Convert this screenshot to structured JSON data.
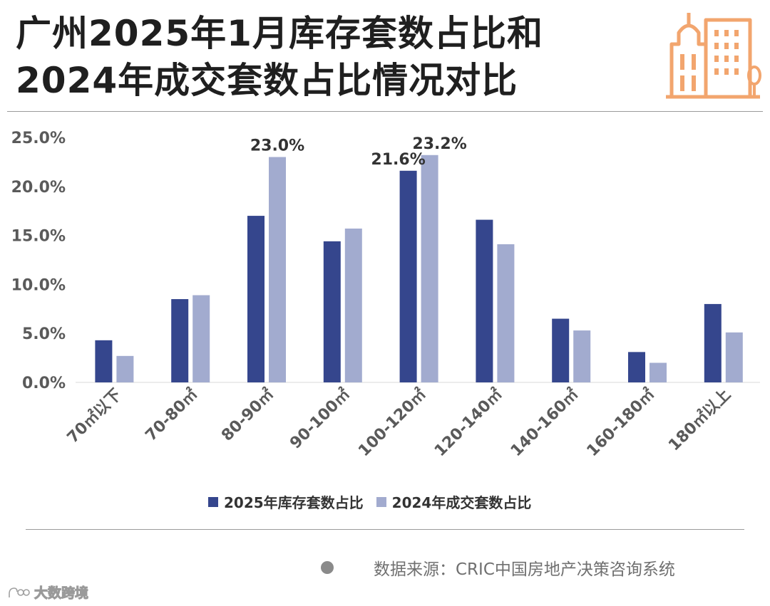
{
  "title": {
    "line1": "广州2025年1月库存套数占比和",
    "line2": "2024年成交套数占比情况对比"
  },
  "logo": {
    "icon": "city-buildings-icon",
    "color": "#f2a56e"
  },
  "colors": {
    "series_2025": "#35468d",
    "series_2024": "#a2abcf",
    "axis_text": "#5a5a5a",
    "label_text": "#333333",
    "divider": "#9a9a9a"
  },
  "chart_data": {
    "type": "bar",
    "categories": [
      "70㎡以下",
      "70-80㎡",
      "80-90㎡",
      "90-100㎡",
      "100-120㎡",
      "120-140㎡",
      "140-160㎡",
      "160-180㎡",
      "180㎡以上"
    ],
    "series": [
      {
        "name": "2025年库存套数占比",
        "values": [
          4.3,
          8.5,
          17.0,
          14.4,
          21.6,
          16.6,
          6.5,
          3.1,
          8.0
        ]
      },
      {
        "name": "2024年成交套数占比",
        "values": [
          2.7,
          8.9,
          23.0,
          15.7,
          23.2,
          14.1,
          5.3,
          2.0,
          5.1
        ]
      }
    ],
    "data_labels": [
      {
        "category": "80-90㎡",
        "series": 1,
        "text": "23.0%"
      },
      {
        "category": "100-120㎡",
        "series": 0,
        "text": "21.6%"
      },
      {
        "category": "100-120㎡",
        "series": 1,
        "text": "23.2%"
      }
    ],
    "yticks": [
      "0.0%",
      "5.0%",
      "10.0%",
      "15.0%",
      "20.0%",
      "25.0%"
    ],
    "ylim": [
      0,
      25
    ],
    "grid": false,
    "legend_position": "bottom"
  },
  "legend": {
    "items": [
      {
        "label": "2025年库存套数占比",
        "icon": "square-swatch-icon"
      },
      {
        "label": "2024年成交套数占比",
        "icon": "square-swatch-icon"
      }
    ]
  },
  "source": {
    "text": "数据来源：CRIC中国房地产决策咨询系统",
    "icon": "bullet-dot-icon"
  },
  "brand": {
    "text": "大数跨境",
    "icon": "brand-logo-icon"
  }
}
